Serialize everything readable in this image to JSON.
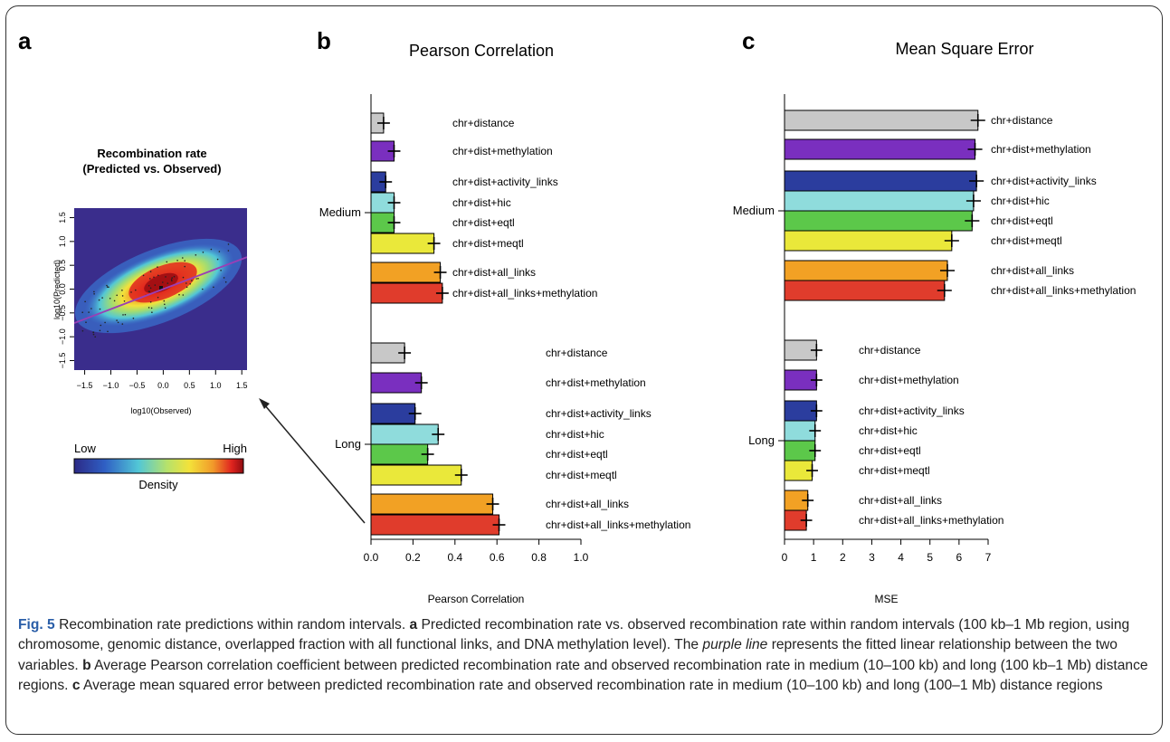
{
  "panels": {
    "a": {
      "letter": "a",
      "title_line1": "Recombination rate",
      "title_line2": "(Predicted vs. Observed)",
      "xlabel": "log10(Observed)",
      "ylabel": "log10(Predicted)",
      "ticks": [
        "-1.5",
        "-1.0",
        "-0.5",
        "0.0",
        "0.5",
        "1.0",
        "1.5"
      ],
      "legend": {
        "low": "Low",
        "high": "High",
        "label": "Density"
      }
    },
    "b": {
      "letter": "b",
      "title": "Pearson Correlation"
    },
    "c": {
      "letter": "c",
      "title": "Mean Square Error"
    }
  },
  "chart_data": [
    {
      "type": "heatmap",
      "title": "Recombination rate (Predicted vs. Observed)",
      "xlabel": "log10(Observed)",
      "ylabel": "log10(Predicted)",
      "xlim": [
        -1.7,
        1.6
      ],
      "ylim": [
        -1.7,
        1.7
      ],
      "colorscale": [
        "#3b2b8f",
        "#2a60c8",
        "#4fc9d6",
        "#b6e36b",
        "#f2e23a",
        "#f29a2b",
        "#e0241f",
        "#a30d14"
      ],
      "fit_line": {
        "color": "#9a3fb5",
        "intercept": 0.0,
        "slope": 0.42
      }
    },
    {
      "type": "bar",
      "title": "Pearson Correlation",
      "xlabel": "Pearson Correlation",
      "ylabel": "",
      "xlim": [
        0,
        1
      ],
      "xticks": [
        "0.0",
        "0.2",
        "0.4",
        "0.6",
        "0.8",
        "1.0"
      ],
      "groups": [
        "Medium",
        "Long"
      ],
      "categories": [
        "chr+distance",
        "chr+dist+methylation",
        "chr+dist+activity_links",
        "chr+dist+hic",
        "chr+dist+eqtl",
        "chr+dist+meqtl",
        "chr+dist+all_links",
        "chr+dist+all_links+methylation"
      ],
      "colors": [
        "#c8c8c8",
        "#7a2fbf",
        "#2b3d9e",
        "#8fdcdc",
        "#5cc84a",
        "#eae83a",
        "#f2a124",
        "#e03c2c"
      ],
      "series": [
        {
          "name": "Medium",
          "values": [
            0.06,
            0.11,
            0.07,
            0.11,
            0.11,
            0.3,
            0.33,
            0.34
          ],
          "errors": [
            0.03,
            0.03,
            0.03,
            0.03,
            0.03,
            0.03,
            0.03,
            0.03
          ]
        },
        {
          "name": "Long",
          "values": [
            0.16,
            0.24,
            0.21,
            0.32,
            0.27,
            0.43,
            0.58,
            0.61
          ],
          "errors": [
            0.03,
            0.03,
            0.03,
            0.03,
            0.03,
            0.03,
            0.03,
            0.03
          ]
        }
      ]
    },
    {
      "type": "bar",
      "title": "Mean Square Error",
      "xlabel": "MSE",
      "ylabel": "",
      "xlim": [
        0,
        7
      ],
      "xticks": [
        "0",
        "1",
        "2",
        "3",
        "4",
        "5",
        "6",
        "7"
      ],
      "groups": [
        "Medium",
        "Long"
      ],
      "categories": [
        "chr+distance",
        "chr+dist+methylation",
        "chr+dist+activity_links",
        "chr+dist+hic",
        "chr+dist+eqtl",
        "chr+dist+meqtl",
        "chr+dist+all_links",
        "chr+dist+all_links+methylation"
      ],
      "colors": [
        "#c8c8c8",
        "#7a2fbf",
        "#2b3d9e",
        "#8fdcdc",
        "#5cc84a",
        "#eae83a",
        "#f2a124",
        "#e03c2c"
      ],
      "series": [
        {
          "name": "Medium",
          "values": [
            6.65,
            6.55,
            6.6,
            6.5,
            6.45,
            5.75,
            5.6,
            5.5
          ],
          "errors": [
            0.25,
            0.25,
            0.25,
            0.25,
            0.25,
            0.25,
            0.25,
            0.25
          ]
        },
        {
          "name": "Long",
          "values": [
            1.1,
            1.1,
            1.1,
            1.05,
            1.05,
            0.95,
            0.8,
            0.75
          ],
          "errors": [
            0.2,
            0.2,
            0.2,
            0.2,
            0.2,
            0.2,
            0.2,
            0.2
          ]
        }
      ]
    }
  ],
  "caption": {
    "fig_label": "Fig. 5",
    "s1": " Recombination rate predictions within random intervals. ",
    "a_letter": "a",
    "s2": " Predicted recombination rate vs. observed recombination rate within random intervals (100 kb–1 Mb region, using chromosome, genomic distance, overlapped fraction with all functional links, and DNA methylation level). The ",
    "purple_line": "purple line",
    "s3": " represents the fitted linear relationship between the two variables. ",
    "b_letter": "b",
    "s4": " Average Pearson correlation coefficient between predicted recombination rate and observed recombination rate in medium (10–100 kb) and long (100 kb–1 Mb) distance regions. ",
    "c_letter": "c",
    "s5": " Average mean squared error between predicted recombination rate and observed recombination rate in medium (10–100 kb) and long (100–1 Mb) distance regions"
  }
}
